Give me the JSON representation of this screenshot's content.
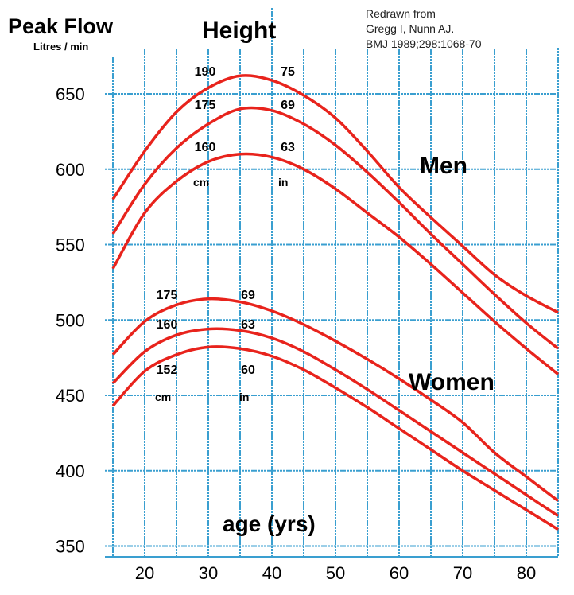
{
  "chart_data": {
    "type": "line",
    "title": "Peak Flow",
    "ylabel": "Litres / min",
    "xlabel": "age (yrs)",
    "height_heading": "Height",
    "source": [
      "Redrawn from",
      "Gregg I, Nunn AJ.",
      "BMJ 1989;298:1068-70"
    ],
    "xlim": [
      15,
      85
    ],
    "ylim": [
      350,
      665
    ],
    "x_ticks": [
      20,
      30,
      40,
      50,
      60,
      70,
      80
    ],
    "y_ticks": [
      350,
      400,
      450,
      500,
      550,
      600,
      650
    ],
    "grid": true,
    "line_color": "#e8231c",
    "grid_color": "#3a9fd0",
    "x": [
      15,
      20,
      25,
      30,
      35,
      40,
      45,
      50,
      55,
      60,
      65,
      70,
      75,
      80,
      85
    ],
    "groups": [
      {
        "name": "Men",
        "unit_cm": "cm",
        "unit_in": "in"
      },
      {
        "name": "Women",
        "unit_cm": "cm",
        "unit_in": "in"
      }
    ],
    "series": [
      {
        "group": "Men",
        "cm": "190",
        "in": "75",
        "values": [
          580,
          612,
          638,
          654,
          662,
          659,
          649,
          634,
          612,
          588,
          568,
          549,
          530,
          516,
          505
        ]
      },
      {
        "group": "Men",
        "cm": "175",
        "in": "69",
        "values": [
          557,
          590,
          614,
          630,
          640,
          639,
          630,
          616,
          598,
          578,
          557,
          537,
          517,
          498,
          481
        ]
      },
      {
        "group": "Men",
        "cm": "160",
        "in": "63",
        "values": [
          534,
          571,
          592,
          605,
          610,
          608,
          600,
          587,
          571,
          555,
          537,
          518,
          499,
          481,
          464
        ]
      },
      {
        "group": "Women",
        "cm": "175",
        "in": "69",
        "values": [
          477,
          499,
          510,
          514,
          512,
          506,
          497,
          486,
          474,
          461,
          447,
          432,
          412,
          396,
          380
        ]
      },
      {
        "group": "Women",
        "cm": "160",
        "in": "63",
        "values": [
          458,
          479,
          490,
          494,
          493,
          488,
          479,
          467,
          454,
          440,
          426,
          412,
          398,
          384,
          370
        ]
      },
      {
        "group": "Women",
        "cm": "152",
        "in": "60",
        "values": [
          443,
          466,
          477,
          482,
          481,
          476,
          467,
          455,
          442,
          428,
          414,
          400,
          387,
          374,
          361
        ]
      }
    ]
  }
}
